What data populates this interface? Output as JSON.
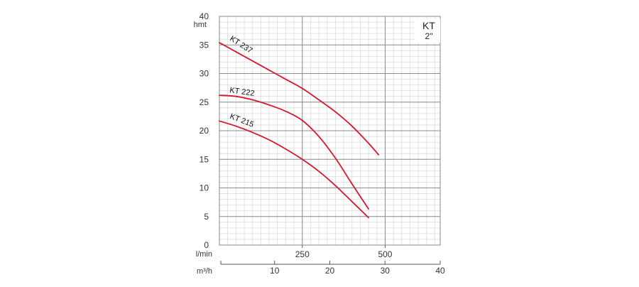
{
  "chart_data": {
    "type": "line",
    "title": "KT",
    "subtitle": "2\"",
    "ylabel": "hmt",
    "ylim": [
      0,
      40
    ],
    "yticks": [
      0,
      5,
      10,
      15,
      20,
      25,
      30,
      35,
      40
    ],
    "xlim": [
      0,
      666
    ],
    "x_axis_label": "l/min",
    "xticks": [
      250,
      500
    ],
    "x2_axis_label": "m³/h",
    "x2lim": [
      0,
      40
    ],
    "x2ticks": [
      10,
      20,
      30,
      40
    ],
    "grid": true,
    "series": [
      {
        "name": "KT 237",
        "color": "#d4172e",
        "x": [
          0,
          50,
          100,
          150,
          200,
          250,
          300,
          350,
          400,
          450,
          480
        ],
        "y": [
          35.4,
          33.8,
          32.2,
          30.6,
          29.0,
          27.4,
          25.4,
          23.3,
          20.8,
          17.8,
          15.8
        ]
      },
      {
        "name": "KT 222",
        "color": "#d4172e",
        "x": [
          0,
          50,
          100,
          150,
          200,
          250,
          300,
          350,
          400,
          450
        ],
        "y": [
          26.2,
          26.0,
          25.4,
          24.5,
          23.4,
          21.8,
          19.0,
          15.2,
          10.7,
          6.3
        ]
      },
      {
        "name": "KT 215",
        "color": "#d4172e",
        "x": [
          0,
          50,
          100,
          150,
          200,
          250,
          300,
          350,
          400,
          450
        ],
        "y": [
          21.7,
          20.8,
          19.7,
          18.4,
          16.8,
          15.0,
          12.9,
          10.4,
          7.6,
          4.8
        ]
      }
    ]
  }
}
